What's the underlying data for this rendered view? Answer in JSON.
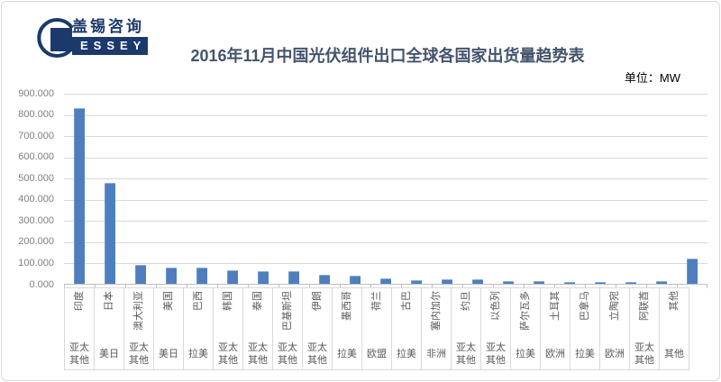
{
  "header": {
    "logo": {
      "chinese": "盖锡咨询",
      "latin": "ESSEY",
      "mark": "G"
    },
    "title": "2016年11月中国光伏组件出口全球各国家出货量趋势表",
    "unit_label": "单位：MW"
  },
  "colors": {
    "bar": "#4E7EBD",
    "navy": "#1B3A6B",
    "gridline": "#D9D9D9",
    "axis_line": "#BFBFBF",
    "axis_text": "#595959",
    "title_text": "#44546A"
  },
  "chart_data": {
    "type": "bar",
    "title": "2016年11月中国光伏组件出口全球各国家出货量趋势表",
    "unit": "MW",
    "grid": true,
    "legend": "none",
    "ylim": [
      0,
      900
    ],
    "ytick_step": 100,
    "ytick_labels": [
      "900.000",
      "800.000",
      "700.000",
      "600.000",
      "500.000",
      "400.000",
      "300.000",
      "200.000",
      "100.000",
      "0.000"
    ],
    "categories": [
      "印度",
      "日本",
      "澳大利亚",
      "美国",
      "巴西",
      "韩国",
      "泰国",
      "巴基斯坦",
      "伊朗",
      "墨西哥",
      "荷兰",
      "古巴",
      "塞内加尔",
      "约旦",
      "以色列",
      "萨尔瓦多",
      "土耳其",
      "巴拿马",
      "立陶宛",
      "阿联酋",
      "其他"
    ],
    "groups": [
      "亚太其他",
      "美日",
      "亚太其他",
      "美日",
      "拉美",
      "亚太其他",
      "亚太其他",
      "亚太其他",
      "亚太其他",
      "拉美",
      "欧盟",
      "拉美",
      "非洲",
      "亚太其他",
      "亚太其他",
      "拉美",
      "欧洲",
      "拉美",
      "欧洲",
      "亚太其他",
      "其他"
    ],
    "values": [
      832,
      478,
      93,
      79,
      80,
      69,
      63,
      65,
      45,
      41,
      30,
      21,
      24,
      25,
      18,
      17,
      14,
      14,
      13,
      16,
      122
    ]
  }
}
